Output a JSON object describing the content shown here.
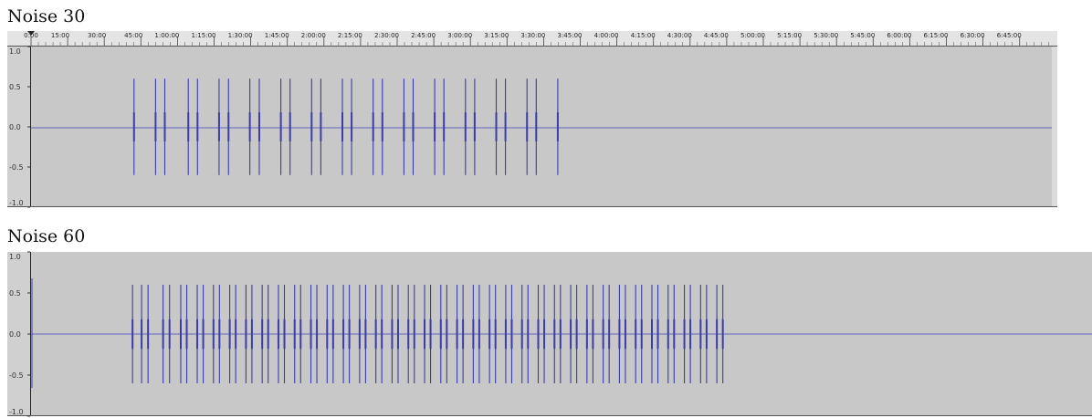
{
  "panels": [
    {
      "title": "Noise 30",
      "ruler_labels": [
        "0:00",
        "15:00",
        "30:00",
        "45:00",
        "1:00:00",
        "1:15:00",
        "1:30:00",
        "1:45:00",
        "2:00:00",
        "2:15:00",
        "2:30:00",
        "2:45:00",
        "3:00:00",
        "3:15:00",
        "3:30:00",
        "3:45:00",
        "4:00:00",
        "4:15:00",
        "4:30:00",
        "4:45:00",
        "5:00:00",
        "5:15:00",
        "5:30:00",
        "5:45:00",
        "6:00:00",
        "6:15:00",
        "6:30:00",
        "6:45:00"
      ]
    },
    {
      "title": "Noise 60",
      "ruler_labels": []
    }
  ],
  "colors": {
    "background": "#c8c8c8",
    "waveform": "#3c3ca8",
    "baseline": "#6464c0",
    "ruler": "#e4e4e4"
  },
  "chart_data": [
    {
      "type": "line",
      "title": "Noise 30",
      "y_tick_labels": [
        "1.0",
        "0.5",
        "0.0",
        "-0.5",
        "-1.0"
      ],
      "ylim": [
        -1,
        1
      ],
      "x_unit": "minutes",
      "xlim": [
        -1.3,
        420
      ],
      "series": [
        {
          "burst_times": [
            41.2,
            50.1,
            53.9,
            63.6,
            67.4,
            76.3,
            80.2,
            89.0,
            92.9,
            101.8,
            105.6,
            114.5,
            118.3,
            127.2,
            131.0,
            139.9,
            143.7,
            152.6,
            156.4,
            165.3,
            169.1,
            178.0,
            181.8,
            190.7,
            194.5,
            203.4,
            207.2,
            216.1
          ],
          "burst_amplitude": 0.6
        }
      ]
    },
    {
      "type": "line",
      "title": "Noise 60",
      "y_tick_labels": [
        "1.0",
        "0.5",
        "0.0",
        "-0.5",
        "-1.0"
      ],
      "ylim": [
        -1,
        1
      ],
      "x_unit": "minutes",
      "xlim": [
        -1.3,
        443
      ],
      "series": [
        {
          "burst_times": [
            41.2,
            45.0,
            47.7,
            54.0,
            56.7,
            61.4,
            63.9,
            68.3,
            70.8,
            75.1,
            77.6,
            81.9,
            84.4,
            88.7,
            91.2,
            95.5,
            98.0,
            102.3,
            104.8,
            109.1,
            111.6,
            115.9,
            118.4,
            122.7,
            125.2,
            129.5,
            132.0,
            136.3,
            138.8,
            143.1,
            145.6,
            149.9,
            152.4,
            156.7,
            159.2,
            163.5,
            166.0,
            170.3,
            172.8,
            177.1,
            179.6,
            183.9,
            186.4,
            190.7,
            193.2,
            197.5,
            200.0,
            204.3,
            206.8,
            211.1,
            213.6,
            217.9,
            220.4,
            224.7,
            227.2,
            231.5,
            234.0,
            238.3,
            240.8,
            245.1,
            247.6,
            251.9,
            254.4,
            258.7,
            261.2,
            265.5,
            268.0,
            272.3,
            274.8,
            279.1,
            281.6,
            285.9,
            288.4
          ],
          "burst_amplitude": 0.6
        }
      ]
    }
  ]
}
